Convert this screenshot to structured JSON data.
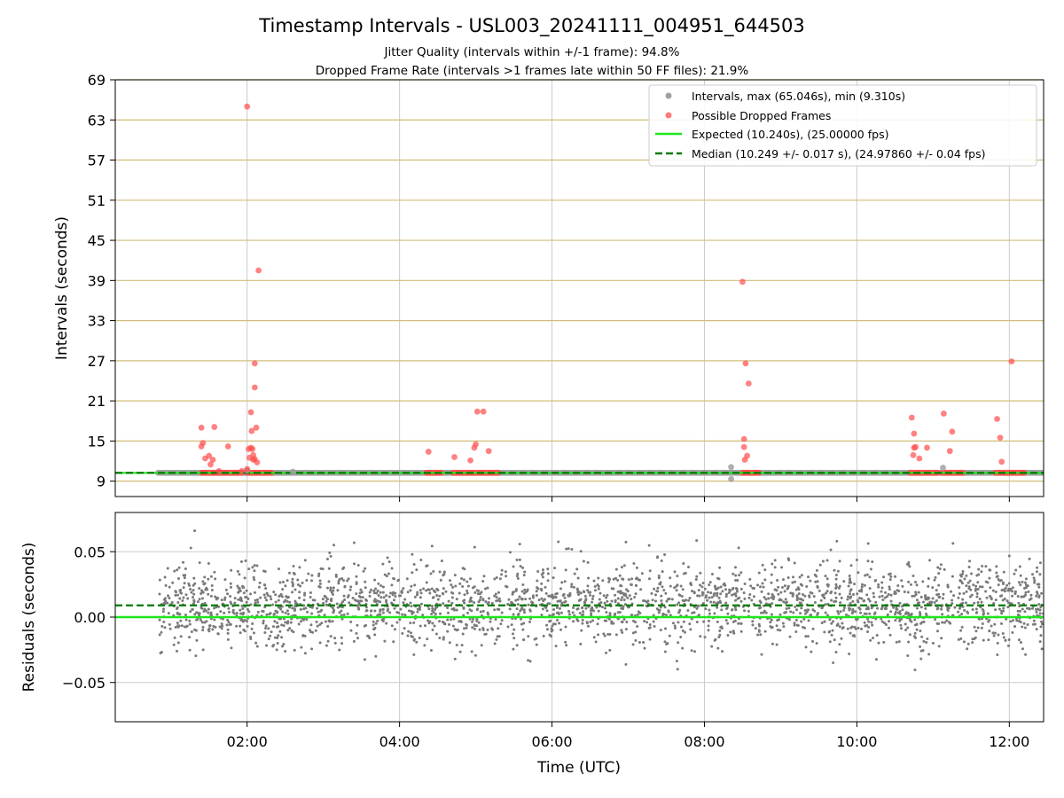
{
  "chart_data": [
    {
      "type": "scatter",
      "title": "Timestamp Intervals - USL003_20241111_004951_644503",
      "subtitle_lines": [
        "Jitter Quality (intervals within +/-1 frame): 94.8%",
        "Dropped Frame Rate (intervals >1 frames late within 50 FF files): 21.9%"
      ],
      "ylabel": "Intervals (seconds)",
      "xlabel": "",
      "xlim_hours": [
        0.27,
        12.45
      ],
      "ylim": [
        6.7,
        69
      ],
      "yticks": [
        9,
        15,
        21,
        27,
        33,
        39,
        45,
        51,
        57,
        63,
        69
      ],
      "ytick_labels": [
        "9",
        "15",
        "21",
        "27",
        "33",
        "39",
        "45",
        "51",
        "57",
        "63",
        "69"
      ],
      "xticks_hours": [
        2,
        4,
        6,
        8,
        10,
        12
      ],
      "grid": true,
      "legend_position": "top-right",
      "colors": {
        "intervals": "#a0a0a0",
        "dropped": "#ff4d4d",
        "expected": "#1ee61e",
        "median": "#007a00",
        "hgrid": "#d2bd7a",
        "vgrid": "#cccccc"
      },
      "legend": [
        "Intervals, max (65.046s), min (9.310s)",
        "Possible Dropped Frames",
        "Expected (10.240s), (25.00000 fps)",
        "Median (10.249 +/- 0.017 s), (24.97860 +/- 0.04 fps)"
      ],
      "series": [
        {
          "name": "Expected (10.240s), (25.00000 fps)",
          "kind": "hline",
          "y": 10.24
        },
        {
          "name": "Median (10.249 +/- 0.017 s), (24.97860 +/- 0.04 fps)",
          "kind": "hline",
          "y": 10.249
        },
        {
          "name": "Intervals, max (65.046s), min (9.310s)",
          "kind": "scatter",
          "baseline": {
            "x_start": 0.83,
            "x_end": 12.45,
            "y": 10.25
          },
          "x": [
            2.0,
            2.6,
            8.35,
            8.35,
            11.13
          ],
          "y": [
            10.6,
            10.4,
            11.1,
            9.31,
            11.0
          ]
        },
        {
          "name": "Possible Dropped Frames",
          "kind": "scatter",
          "clusters": [
            {
              "x_start": 1.4,
              "x_end": 1.93,
              "y": 10.25
            },
            {
              "x_start": 2.0,
              "x_end": 2.33,
              "y": 10.25
            },
            {
              "x_start": 4.35,
              "x_end": 4.55,
              "y": 10.25
            },
            {
              "x_start": 4.7,
              "x_end": 5.3,
              "y": 10.25
            },
            {
              "x_start": 8.5,
              "x_end": 8.72,
              "y": 10.25
            },
            {
              "x_start": 10.7,
              "x_end": 11.07,
              "y": 10.25
            },
            {
              "x_start": 11.12,
              "x_end": 11.4,
              "y": 10.25
            },
            {
              "x_start": 11.82,
              "x_end": 12.2,
              "y": 10.25
            }
          ],
          "x": [
            1.4,
            1.4,
            1.42,
            1.45,
            1.5,
            1.52,
            1.55,
            1.57,
            1.63,
            1.75,
            1.93,
            2.0,
            2.03,
            2.05,
            2.05,
            2.06,
            2.07,
            2.08,
            2.08,
            2.1,
            2.1,
            2.12,
            2.13,
            2.15,
            2.0,
            2.02,
            2.1,
            4.38,
            4.72,
            4.93,
            4.98,
            5.0,
            5.02,
            5.1,
            5.17,
            8.5,
            8.52,
            8.52,
            8.53,
            8.54,
            8.56,
            8.58,
            10.72,
            10.74,
            10.75,
            10.75,
            10.77,
            10.82,
            10.92,
            11.14,
            11.22,
            11.25,
            11.84,
            11.88,
            11.9,
            12.03
          ],
          "y": [
            17.0,
            14.2,
            14.7,
            12.4,
            12.8,
            11.5,
            12.2,
            17.1,
            10.5,
            14.2,
            10.5,
            10.8,
            12.5,
            14.0,
            19.3,
            16.5,
            13.8,
            12.2,
            12.9,
            23.0,
            26.6,
            17.0,
            11.8,
            40.5,
            65.0,
            13.8,
            12.3,
            13.4,
            12.6,
            12.1,
            14.0,
            14.5,
            19.4,
            19.4,
            13.5,
            38.8,
            15.3,
            14.1,
            12.2,
            26.6,
            12.8,
            23.6,
            18.5,
            12.9,
            16.1,
            14.0,
            14.1,
            12.4,
            14.0,
            19.1,
            13.5,
            16.4,
            18.3,
            15.5,
            11.9,
            26.9
          ]
        }
      ]
    },
    {
      "type": "scatter",
      "ylabel": "Residuals (seconds)",
      "xlabel": "Time (UTC)",
      "xlim_hours": [
        0.27,
        12.45
      ],
      "ylim": [
        -0.08,
        0.08
      ],
      "yticks": [
        -0.05,
        0.0,
        0.05
      ],
      "ytick_labels": [
        "−0.05",
        "0.00",
        "0.05"
      ],
      "xticks_hours": [
        2,
        4,
        6,
        8,
        10,
        12
      ],
      "xtick_labels": [
        "02:00",
        "04:00",
        "06:00",
        "08:00",
        "10:00",
        "12:00"
      ],
      "grid": true,
      "colors": {
        "points": "#7a7a7a",
        "expected": "#1ee61e",
        "median": "#007a00",
        "grid": "#cccccc"
      },
      "series": [
        {
          "kind": "hline",
          "y": 0.0
        },
        {
          "kind": "hline",
          "y": 0.009
        },
        {
          "kind": "scatter",
          "distribution": {
            "count": 2600,
            "x_start": 0.85,
            "x_end": 12.45,
            "mean": 0.009,
            "std": 0.016,
            "clip": [
              -0.05,
              0.072
            ]
          }
        }
      ]
    }
  ]
}
